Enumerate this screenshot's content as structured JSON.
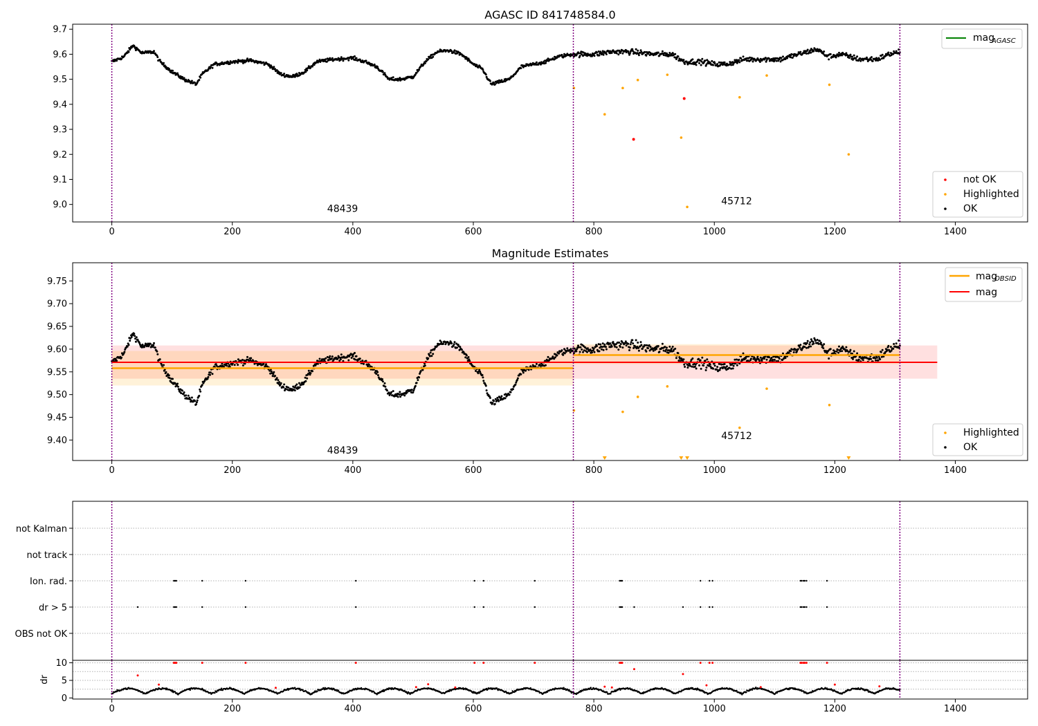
{
  "colors": {
    "ok": "#000000",
    "highlighted": "#ffa500",
    "not_ok": "#ff0000",
    "mag_agasc": "#008000",
    "mag_obsid": "#ffa500",
    "mag": "#ff0000",
    "obsid_line": "#800080"
  },
  "chart_data": [
    {
      "type": "scatter",
      "title": "AGASC ID 841748584.0",
      "xlim": [
        -65,
        1520
      ],
      "ylim": [
        8.93,
        9.72
      ],
      "xticks": [
        0,
        200,
        400,
        600,
        800,
        1000,
        1200,
        1400
      ],
      "yticks": [
        9.0,
        9.1,
        9.2,
        9.3,
        9.4,
        9.5,
        9.6,
        9.7
      ],
      "obsid_boundaries": [
        0,
        766,
        1308
      ],
      "annotations": [
        {
          "text": "48439",
          "x": 383,
          "y": 8.97
        },
        {
          "text": "45712",
          "x": 1037,
          "y": 9.0
        }
      ],
      "legend_lines": {
        "position": "top-right",
        "entries": [
          {
            "name": "mag",
            "sub": "AGASC"
          }
        ]
      },
      "legend_points": {
        "position": "bottom-right",
        "entries": [
          "not OK",
          "Highlighted",
          "OK"
        ]
      },
      "highlighted_points": [
        [
          767,
          9.465
        ],
        [
          818,
          9.36
        ],
        [
          848,
          9.465
        ],
        [
          873,
          9.497
        ],
        [
          922,
          9.518
        ],
        [
          945,
          9.267
        ],
        [
          955,
          8.99
        ],
        [
          1042,
          9.428
        ],
        [
          1087,
          9.515
        ],
        [
          1191,
          9.478
        ],
        [
          1223,
          9.2
        ]
      ],
      "not_ok_points": [
        [
          866,
          9.26
        ],
        [
          950,
          9.423
        ]
      ],
      "ok_segments": [
        [
          0,
          9.57
        ],
        [
          20,
          9.59
        ],
        [
          35,
          9.635
        ],
        [
          50,
          9.605
        ],
        [
          70,
          9.61
        ],
        [
          80,
          9.57
        ],
        [
          100,
          9.53
        ],
        [
          120,
          9.5
        ],
        [
          140,
          9.48
        ],
        [
          150,
          9.52
        ],
        [
          170,
          9.56
        ],
        [
          200,
          9.57
        ],
        [
          230,
          9.575
        ],
        [
          260,
          9.56
        ],
        [
          280,
          9.52
        ],
        [
          300,
          9.51
        ],
        [
          320,
          9.53
        ],
        [
          340,
          9.57
        ],
        [
          370,
          9.58
        ],
        [
          400,
          9.585
        ],
        [
          420,
          9.57
        ],
        [
          440,
          9.55
        ],
        [
          460,
          9.5
        ],
        [
          480,
          9.5
        ],
        [
          500,
          9.51
        ],
        [
          520,
          9.57
        ],
        [
          540,
          9.61
        ],
        [
          560,
          9.615
        ],
        [
          580,
          9.6
        ],
        [
          600,
          9.56
        ],
        [
          615,
          9.54
        ],
        [
          630,
          9.48
        ],
        [
          660,
          9.5
        ],
        [
          680,
          9.55
        ],
        [
          700,
          9.56
        ],
        [
          720,
          9.57
        ],
        [
          740,
          9.59
        ],
        [
          766,
          9.6
        ],
        [
          800,
          9.6
        ],
        [
          830,
          9.61
        ],
        [
          860,
          9.61
        ],
        [
          900,
          9.6
        ],
        [
          930,
          9.6
        ],
        [
          950,
          9.57
        ],
        [
          980,
          9.57
        ],
        [
          1000,
          9.56
        ],
        [
          1020,
          9.56
        ],
        [
          1050,
          9.58
        ],
        [
          1080,
          9.58
        ],
        [
          1110,
          9.58
        ],
        [
          1140,
          9.6
        ],
        [
          1170,
          9.62
        ],
        [
          1190,
          9.59
        ],
        [
          1210,
          9.6
        ],
        [
          1240,
          9.58
        ],
        [
          1270,
          9.58
        ],
        [
          1290,
          9.6
        ],
        [
          1308,
          9.61
        ]
      ]
    },
    {
      "type": "scatter",
      "title": "Magnitude Estimates",
      "xlim": [
        -65,
        1520
      ],
      "ylim": [
        9.355,
        9.79
      ],
      "xticks": [
        0,
        200,
        400,
        600,
        800,
        1000,
        1200,
        1400
      ],
      "yticks": [
        9.4,
        9.45,
        9.5,
        9.55,
        9.6,
        9.65,
        9.7,
        9.75
      ],
      "obsid_boundaries": [
        0,
        766,
        1308
      ],
      "annotations": [
        {
          "text": "48439",
          "x": 383,
          "y": 9.37
        },
        {
          "text": "45712",
          "x": 1037,
          "y": 9.402
        }
      ],
      "mag": {
        "value": 9.571,
        "band": [
          9.535,
          9.608
        ],
        "x_range": [
          0,
          1370
        ]
      },
      "mag_obsid": [
        {
          "value": 9.558,
          "band": [
            9.52,
            9.596
          ],
          "x_range": [
            0,
            766
          ]
        },
        {
          "value": 9.587,
          "band": [
            9.567,
            9.611
          ],
          "x_range": [
            766,
            1308
          ]
        }
      ],
      "legend_lines": {
        "position": "top-right",
        "entries": [
          {
            "name": "mag",
            "sub": "OBSID"
          },
          {
            "name": "mag",
            "sub": ""
          }
        ]
      },
      "legend_points": {
        "position": "bottom-right",
        "entries": [
          "Highlighted",
          "OK"
        ]
      },
      "highlighted_points": [
        [
          767,
          9.465
        ],
        [
          848,
          9.462
        ],
        [
          873,
          9.495
        ],
        [
          922,
          9.518
        ],
        [
          1042,
          9.427
        ],
        [
          1087,
          9.513
        ],
        [
          1191,
          9.477
        ]
      ],
      "offscale_markers": [
        818,
        945,
        955,
        1223
      ]
    },
    {
      "type": "scatter",
      "title": "",
      "xlim": [
        -65,
        1520
      ],
      "categories": [
        "not Kalman",
        "not track",
        "Ion. rad.",
        "dr > 5",
        "OBS not OK"
      ],
      "flags": {
        "Ion. rad.": [
          103,
          105,
          107,
          150,
          222,
          405,
          602,
          617,
          702,
          843,
          845,
          847,
          977,
          992,
          997,
          1143,
          1145,
          1148,
          1150,
          1153,
          1187
        ],
        "dr > 5": [
          43,
          103,
          105,
          107,
          150,
          222,
          405,
          602,
          617,
          702,
          843,
          845,
          847,
          867,
          948,
          977,
          992,
          997,
          1143,
          1145,
          1148,
          1150,
          1153,
          1187
        ]
      },
      "obsid_boundaries": [
        0,
        766,
        1308
      ]
    },
    {
      "type": "scatter",
      "title": "",
      "ylabel": "dr",
      "xlim": [
        -65,
        1520
      ],
      "ylim": [
        -0.3,
        10.7
      ],
      "yticks": [
        0,
        5,
        10
      ],
      "xticks": [
        0,
        200,
        400,
        600,
        800,
        1000,
        1200,
        1400
      ],
      "obsid_boundaries": [
        0,
        766,
        1308
      ],
      "red_points": [
        [
          43,
          6.4
        ],
        [
          78,
          3.8
        ],
        [
          103,
          10
        ],
        [
          105,
          10
        ],
        [
          107,
          10
        ],
        [
          150,
          10
        ],
        [
          222,
          10
        ],
        [
          272,
          2.9
        ],
        [
          405,
          10
        ],
        [
          505,
          3.1
        ],
        [
          525,
          3.9
        ],
        [
          570,
          3.0
        ],
        [
          602,
          10
        ],
        [
          617,
          10
        ],
        [
          702,
          10
        ],
        [
          818,
          3.2
        ],
        [
          830,
          3.0
        ],
        [
          843,
          10
        ],
        [
          845,
          10
        ],
        [
          847,
          10
        ],
        [
          867,
          8.2
        ],
        [
          948,
          6.8
        ],
        [
          977,
          10
        ],
        [
          987,
          3.6
        ],
        [
          992,
          10
        ],
        [
          997,
          10
        ],
        [
          1077,
          3.1
        ],
        [
          1143,
          10
        ],
        [
          1145,
          10
        ],
        [
          1148,
          10
        ],
        [
          1150,
          10
        ],
        [
          1153,
          10
        ],
        [
          1187,
          10
        ],
        [
          1200,
          3.8
        ],
        [
          1274,
          3.3
        ]
      ]
    }
  ]
}
